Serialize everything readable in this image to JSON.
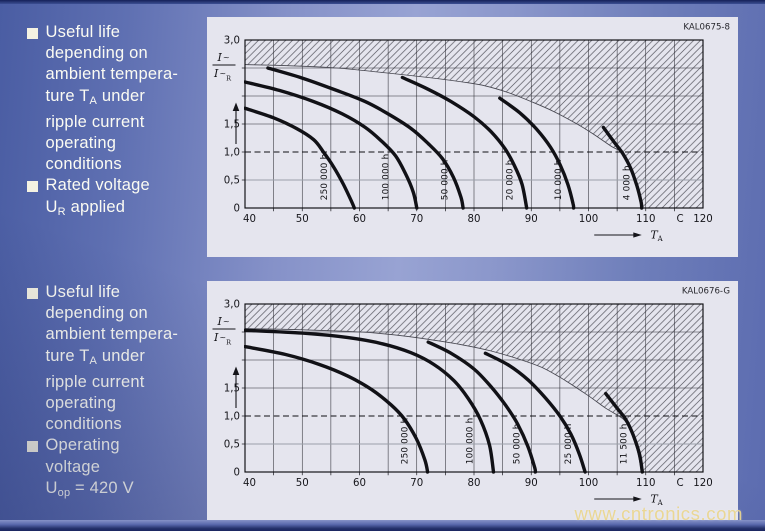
{
  "page": {
    "watermark": "www.cntronics.com"
  },
  "sidebar": {
    "blocks": [
      {
        "items": [
          {
            "lines": [
              [
                {
                  "t": "Useful life"
                }
              ],
              [
                {
                  "t": "depending on"
                }
              ],
              [
                {
                  "t": "ambient tempera-"
                }
              ],
              [
                {
                  "t": "ture T"
                },
                {
                  "t": "A",
                  "sub": true
                },
                {
                  "t": " under"
                }
              ],
              [
                {
                  "t": "ripple current"
                }
              ],
              [
                {
                  "t": "operating"
                }
              ],
              [
                {
                  "t": "conditions"
                }
              ]
            ]
          },
          {
            "lines": [
              [
                {
                  "t": "Rated voltage"
                }
              ],
              [
                {
                  "t": "U"
                },
                {
                  "t": "R",
                  "sub": true
                },
                {
                  "t": " applied"
                }
              ]
            ]
          }
        ]
      },
      {
        "items": [
          {
            "lines": [
              [
                {
                  "t": "Useful life"
                }
              ],
              [
                {
                  "t": "depending on"
                }
              ],
              [
                {
                  "t": "ambient tempera-"
                }
              ],
              [
                {
                  "t": "ture T"
                },
                {
                  "t": "A",
                  "sub": true
                },
                {
                  "t": " under"
                }
              ],
              [
                {
                  "t": "ripple current"
                }
              ],
              [
                {
                  "t": "operating"
                }
              ],
              [
                {
                  "t": "conditions"
                }
              ]
            ]
          },
          {
            "lines": [
              [
                {
                  "t": "Operating"
                }
              ],
              [
                {
                  "t": "voltage"
                }
              ],
              [
                {
                  "t": "U"
                },
                {
                  "t": "op",
                  "sub": true
                },
                {
                  "t": " = 420 V"
                }
              ]
            ]
          }
        ]
      }
    ]
  },
  "chart_data": {
    "type": "line",
    "description_visible": "Useful life curves (hours) vs ambient temperature at given ripple-current ratio; hatched area = not permitted",
    "charts": [
      {
        "code": "KAL0675-8",
        "x": {
          "range": [
            40,
            120
          ],
          "ticks": [
            40,
            50,
            60,
            70,
            80,
            90,
            100,
            110,
            120
          ],
          "unit": "C",
          "unit_t": 116,
          "grid_step": 5,
          "axis_label_main": "T",
          "axis_label_sub": "A"
        },
        "y": {
          "range": [
            0,
            3
          ],
          "grid_step": 0.5,
          "ref_dashed": 1.0,
          "gray_line": 0.5,
          "tick_labels": [
            {
              "text": "3,0",
              "v": 3
            },
            {
              "text": "1,5",
              "v": 1.5
            },
            {
              "text": "1,0",
              "v": 1
            },
            {
              "text": "0,5",
              "v": 0.5
            },
            {
              "text": "0",
              "v": 0
            }
          ],
          "fraction_num": "I",
          "fraction_num_tilde": "~",
          "fraction_den": "I",
          "fraction_den_tilde": "~",
          "fraction_den_sub": "R"
        },
        "boundary": [
          [
            40,
            2.56
          ],
          [
            48,
            2.54
          ],
          [
            56,
            2.5
          ],
          [
            64,
            2.42
          ],
          [
            72,
            2.33
          ],
          [
            78,
            2.25
          ],
          [
            82,
            2.18
          ],
          [
            86,
            2.06
          ],
          [
            90,
            1.9
          ],
          [
            94,
            1.72
          ],
          [
            98,
            1.5
          ],
          [
            101,
            1.31
          ],
          [
            104,
            1.1
          ],
          [
            106,
            0.98
          ]
        ],
        "boundary_tail": [
          [
            107.4,
            0.7
          ],
          [
            108.5,
            0.38
          ],
          [
            109.3,
            0
          ]
        ],
        "series": [
          {
            "name": "250 000 h",
            "label_t": 53.8,
            "points": [
              [
                40,
                1.78
              ],
              [
                45,
                1.61
              ],
              [
                49,
                1.42
              ],
              [
                52,
                1.22
              ],
              [
                53.7,
                1.0
              ],
              [
                55.5,
                0.73
              ],
              [
                57.2,
                0.42
              ],
              [
                58.6,
                0.12
              ],
              [
                59.1,
                0
              ]
            ]
          },
          {
            "name": "100 000 h",
            "label_t": 64.5,
            "points": [
              [
                40,
                2.25
              ],
              [
                46,
                2.1
              ],
              [
                52,
                1.9
              ],
              [
                57,
                1.68
              ],
              [
                61,
                1.44
              ],
              [
                64,
                1.18
              ],
              [
                66.3,
                0.93
              ],
              [
                68,
                0.62
              ],
              [
                69.4,
                0.28
              ],
              [
                70,
                0
              ]
            ]
          },
          {
            "name": "50 000 h",
            "label_t": 74.8,
            "points": [
              [
                44,
                2.5
              ],
              [
                50,
                2.32
              ],
              [
                56,
                2.1
              ],
              [
                61,
                1.9
              ],
              [
                65,
                1.68
              ],
              [
                69,
                1.42
              ],
              [
                72,
                1.15
              ],
              [
                74.5,
                0.88
              ],
              [
                76.4,
                0.55
              ],
              [
                77.7,
                0.2
              ],
              [
                78.1,
                0
              ]
            ]
          },
          {
            "name": "20 000 h",
            "label_t": 86.2,
            "points": [
              [
                67.5,
                2.33
              ],
              [
                72,
                2.12
              ],
              [
                76,
                1.9
              ],
              [
                80,
                1.63
              ],
              [
                83,
                1.36
              ],
              [
                85.4,
                1.06
              ],
              [
                87.1,
                0.75
              ],
              [
                88.4,
                0.42
              ],
              [
                89.2,
                0
              ]
            ]
          },
          {
            "name": "10 000 h",
            "label_t": 94.6,
            "points": [
              [
                84.5,
                1.96
              ],
              [
                88,
                1.7
              ],
              [
                91,
                1.4
              ],
              [
                93.4,
                1.08
              ],
              [
                95.1,
                0.76
              ],
              [
                96.4,
                0.42
              ],
              [
                97.3,
                0.08
              ],
              [
                97.4,
                0
              ]
            ]
          },
          {
            "name": "4 000 h",
            "label_t": 106.6,
            "points": [
              [
                102.6,
                1.44
              ],
              [
                104.6,
                1.16
              ],
              [
                106,
                0.97
              ],
              [
                107.4,
                0.7
              ],
              [
                108.5,
                0.38
              ],
              [
                109.2,
                0.1
              ],
              [
                109.3,
                0
              ]
            ]
          }
        ]
      },
      {
        "code": "KAL0676-G",
        "x": {
          "range": [
            40,
            120
          ],
          "ticks": [
            40,
            50,
            60,
            70,
            80,
            90,
            100,
            110,
            120
          ],
          "unit": "C",
          "unit_t": 116,
          "grid_step": 5,
          "axis_label_main": "T",
          "axis_label_sub": "A"
        },
        "y": {
          "range": [
            0,
            3
          ],
          "grid_step": 0.5,
          "ref_dashed": 1.0,
          "gray_line": 0.5,
          "tick_labels": [
            {
              "text": "3,0",
              "v": 3
            },
            {
              "text": "1,5",
              "v": 1.5
            },
            {
              "text": "1,0",
              "v": 1
            },
            {
              "text": "0,5",
              "v": 0.5
            },
            {
              "text": "0",
              "v": 0
            }
          ],
          "fraction_num": "I",
          "fraction_num_tilde": "~",
          "fraction_den": "I",
          "fraction_den_tilde": "~",
          "fraction_den_sub": "R"
        },
        "boundary": [
          [
            40,
            2.56
          ],
          [
            50,
            2.54
          ],
          [
            60,
            2.5
          ],
          [
            66,
            2.45
          ],
          [
            72,
            2.37
          ],
          [
            78,
            2.27
          ],
          [
            83,
            2.16
          ],
          [
            88,
            2.01
          ],
          [
            92,
            1.86
          ],
          [
            96,
            1.63
          ],
          [
            100,
            1.36
          ],
          [
            103,
            1.14
          ],
          [
            106,
            0.95
          ]
        ],
        "boundary_tail": [
          [
            107.2,
            0.76
          ],
          [
            108.4,
            0.42
          ],
          [
            109.3,
            0
          ]
        ],
        "series": [
          {
            "name": "250 000 h",
            "label_t": 67.8,
            "points": [
              [
                40,
                2.24
              ],
              [
                47,
                2.1
              ],
              [
                53,
                1.92
              ],
              [
                58,
                1.71
              ],
              [
                62,
                1.48
              ],
              [
                65.5,
                1.2
              ],
              [
                67.8,
                0.95
              ],
              [
                69.9,
                0.6
              ],
              [
                71.4,
                0.22
              ],
              [
                71.9,
                0
              ]
            ]
          },
          {
            "name": "100 000 h",
            "label_t": 79.2,
            "points": [
              [
                40,
                2.53
              ],
              [
                50,
                2.48
              ],
              [
                58,
                2.4
              ],
              [
                64,
                2.29
              ],
              [
                69,
                2.13
              ],
              [
                73,
                1.92
              ],
              [
                76.5,
                1.63
              ],
              [
                79,
                1.31
              ],
              [
                81.1,
                0.94
              ],
              [
                82.7,
                0.48
              ],
              [
                83.4,
                0
              ]
            ]
          },
          {
            "name": "50 000 h",
            "label_t": 87.4,
            "points": [
              [
                72,
                2.32
              ],
              [
                76,
                2.12
              ],
              [
                80,
                1.84
              ],
              [
                83,
                1.52
              ],
              [
                85.6,
                1.18
              ],
              [
                87.6,
                0.86
              ],
              [
                89.4,
                0.46
              ],
              [
                90.6,
                0.08
              ],
              [
                90.7,
                0
              ]
            ]
          },
          {
            "name": "25 000 h",
            "label_t": 96.4,
            "points": [
              [
                82,
                2.12
              ],
              [
                86,
                1.91
              ],
              [
                89.5,
                1.64
              ],
              [
                92.5,
                1.32
              ],
              [
                95,
                1.0
              ],
              [
                96.9,
                0.68
              ],
              [
                98.4,
                0.32
              ],
              [
                99.4,
                0
              ]
            ]
          },
          {
            "name": "11 500 h",
            "label_t": 106.1,
            "points": [
              [
                103,
                1.4
              ],
              [
                105,
                1.14
              ],
              [
                106.5,
                0.94
              ],
              [
                107.8,
                0.66
              ],
              [
                108.9,
                0.32
              ],
              [
                109.4,
                0
              ]
            ]
          }
        ]
      }
    ]
  }
}
